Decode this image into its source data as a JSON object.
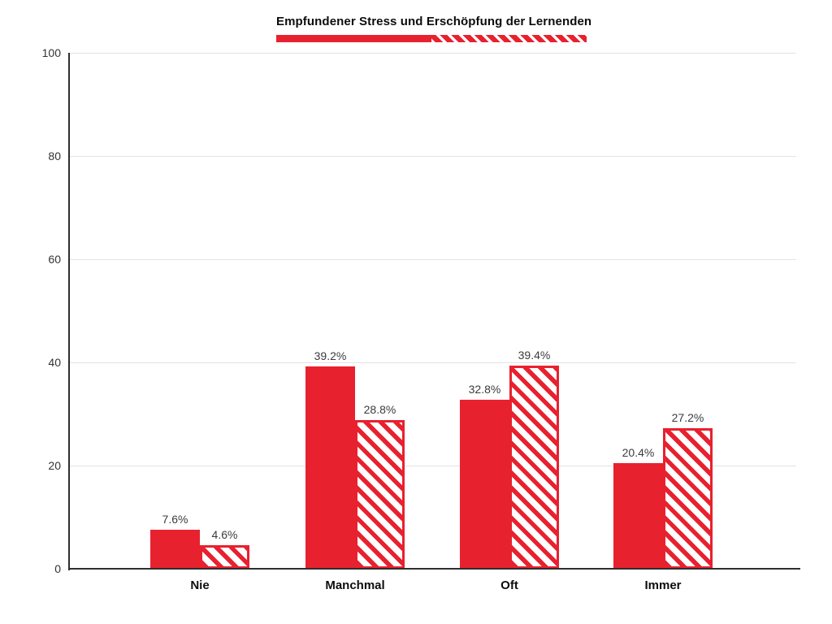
{
  "chart_data": {
    "type": "bar",
    "title": "Empfundener Stress und Erschöpfung der Lernenden",
    "categories": [
      "Nie",
      "Manchmal",
      "Oft",
      "Immer"
    ],
    "series": [
      {
        "name": "series-solid",
        "style": "solid",
        "values": [
          7.6,
          39.2,
          32.8,
          20.4
        ],
        "labels": [
          "7.6%",
          "39.2%",
          "32.8%",
          "20.4%"
        ]
      },
      {
        "name": "series-hatched",
        "style": "hatched",
        "values": [
          4.6,
          28.8,
          39.4,
          27.2
        ],
        "labels": [
          "4.6%",
          "28.8%",
          "39.4%",
          "27.2%"
        ]
      }
    ],
    "ylim": [
      0,
      100
    ],
    "yticks": [
      "0",
      "20",
      "40",
      "60",
      "80",
      "100"
    ],
    "grid": true,
    "legend_position": "top-center-under-title",
    "legend_swatches": [
      "solid-red",
      "red-white-diagonal-dashes"
    ],
    "accent_color": "#e8212f",
    "grid_color": "#e3e3e3",
    "axis_color": "#2e2e2e",
    "value_label_color": "#3b3b3b"
  }
}
